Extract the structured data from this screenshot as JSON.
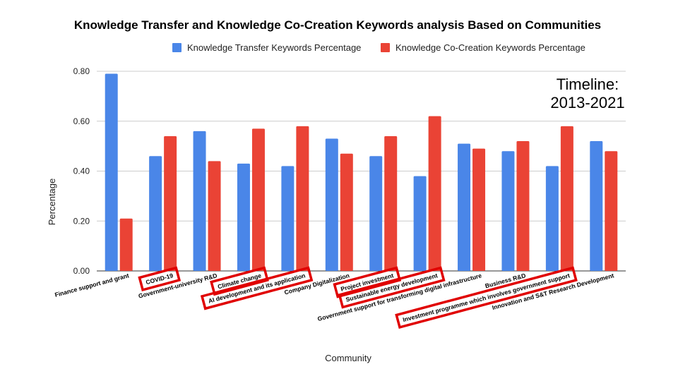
{
  "chart_data": {
    "type": "bar",
    "title": "Knowledge Transfer and Knowledge Co-Creation Keywords analysis Based on Communities",
    "xlabel": "Community",
    "ylabel": "Percentage",
    "ylim": [
      0,
      0.8
    ],
    "yticks": [
      "0.00",
      "0.20",
      "0.40",
      "0.60",
      "0.80"
    ],
    "grid": true,
    "legend_position": "top",
    "categories": [
      "Finance support and grant",
      "COVID-19",
      "Government-university R&D",
      "Climate change",
      "AI development and its application",
      "Company Digitalization",
      "Project investment",
      "Sustainable energy development",
      "Government support for transforming digital infrastructure",
      "Business R&D",
      "Investment programme which involves government support",
      "Innovation and S&T Research Development"
    ],
    "highlighted_categories": [
      1,
      3,
      4,
      6,
      7,
      10
    ],
    "series": [
      {
        "name": "Knowledge Transfer Keywords Percentage",
        "color": "#4a86e8",
        "values": [
          0.79,
          0.46,
          0.56,
          0.43,
          0.42,
          0.53,
          0.46,
          0.38,
          0.51,
          0.48,
          0.42,
          0.52
        ]
      },
      {
        "name": "Knowledge Co-Creation Keywords Percentage",
        "color": "#ea4335",
        "values": [
          0.21,
          0.54,
          0.44,
          0.57,
          0.58,
          0.47,
          0.54,
          0.62,
          0.49,
          0.52,
          0.58,
          0.48
        ]
      }
    ],
    "annotation": [
      "Timeline:",
      "2013-2021"
    ],
    "highlight_color": "#e00000"
  }
}
